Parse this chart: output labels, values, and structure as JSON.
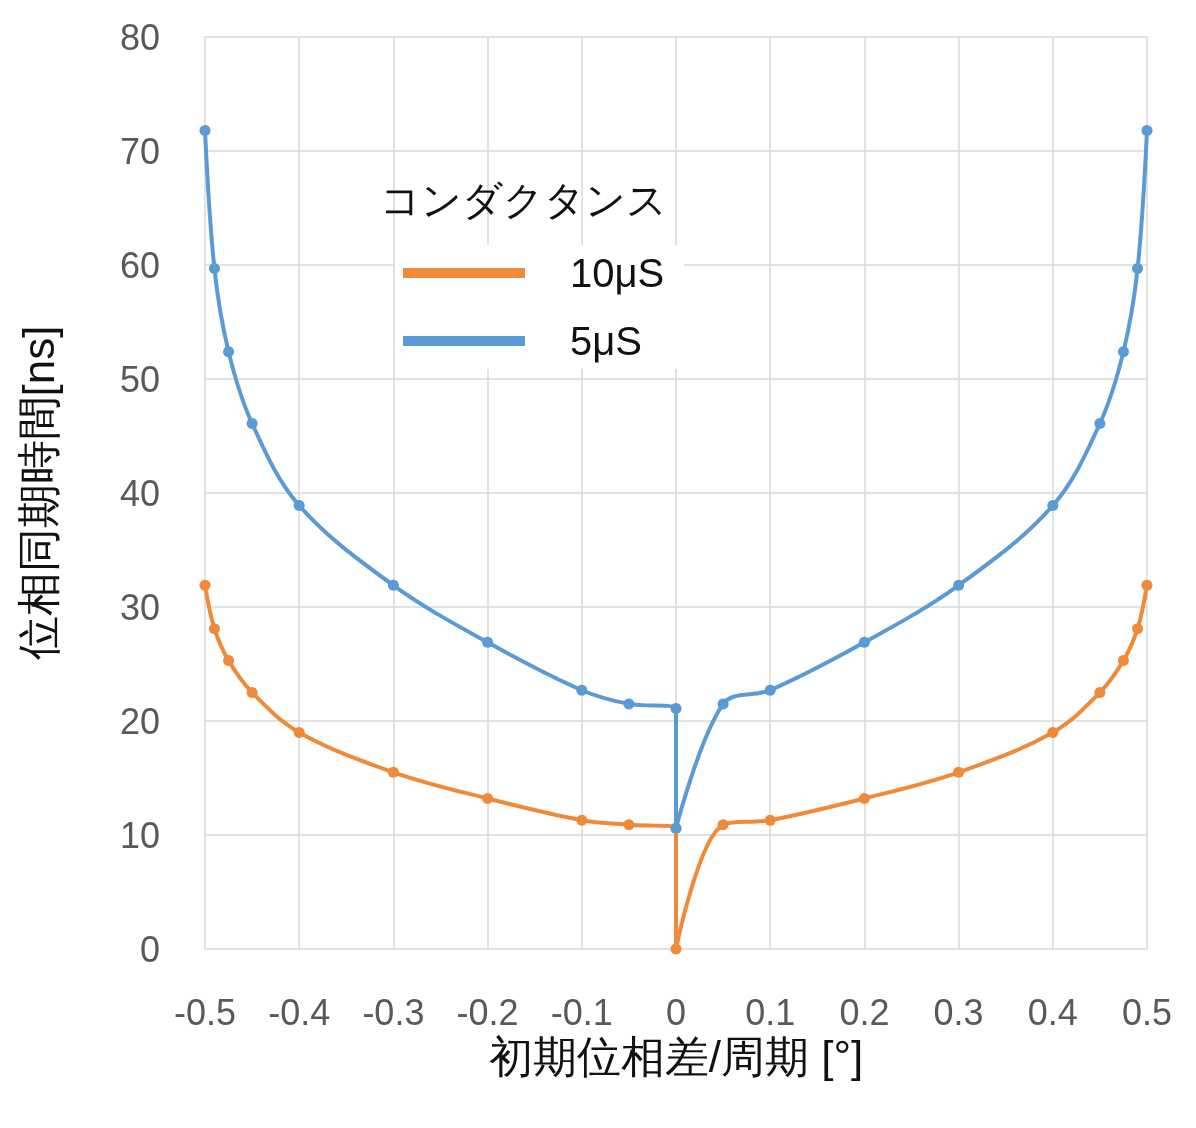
{
  "chart_data": {
    "type": "line",
    "xlabel": "初期位相差/周期 [°]",
    "ylabel": "位相同期時間[ns]",
    "legend_title": "コンダクタンス",
    "x": [
      -0.5,
      -0.49,
      -0.475,
      -0.45,
      -0.4,
      -0.3,
      -0.2,
      -0.1,
      -0.05,
      0,
      0,
      0.05,
      0.1,
      0.2,
      0.3,
      0.4,
      0.45,
      0.475,
      0.49,
      0.5
    ],
    "series": [
      {
        "name": "10μS",
        "color": "#f08a3b",
        "values": [
          31.9,
          28.1,
          25.3,
          22.5,
          19.0,
          15.5,
          13.2,
          11.3,
          10.9,
          10.6,
          0,
          10.9,
          11.3,
          13.2,
          15.5,
          19.0,
          22.5,
          25.3,
          28.1,
          31.9
        ]
      },
      {
        "name": "5μS",
        "color": "#5b9bd5",
        "values": [
          71.8,
          59.7,
          52.4,
          46.1,
          38.9,
          31.9,
          26.9,
          22.7,
          21.5,
          21.1,
          10.6,
          21.5,
          22.7,
          26.9,
          31.9,
          38.9,
          46.1,
          52.4,
          59.7,
          71.8
        ]
      }
    ],
    "xlim": [
      -0.5,
      0.5
    ],
    "xticks": [
      -0.5,
      -0.4,
      -0.3,
      -0.2,
      -0.1,
      0,
      0.1,
      0.2,
      0.3,
      0.4,
      0.5
    ],
    "ylim": [
      0,
      80
    ],
    "yticks": [
      0,
      10,
      20,
      30,
      40,
      50,
      60,
      70,
      80
    ],
    "grid": true,
    "legend": "top left",
    "marker": "circle",
    "line_style": "solid"
  }
}
